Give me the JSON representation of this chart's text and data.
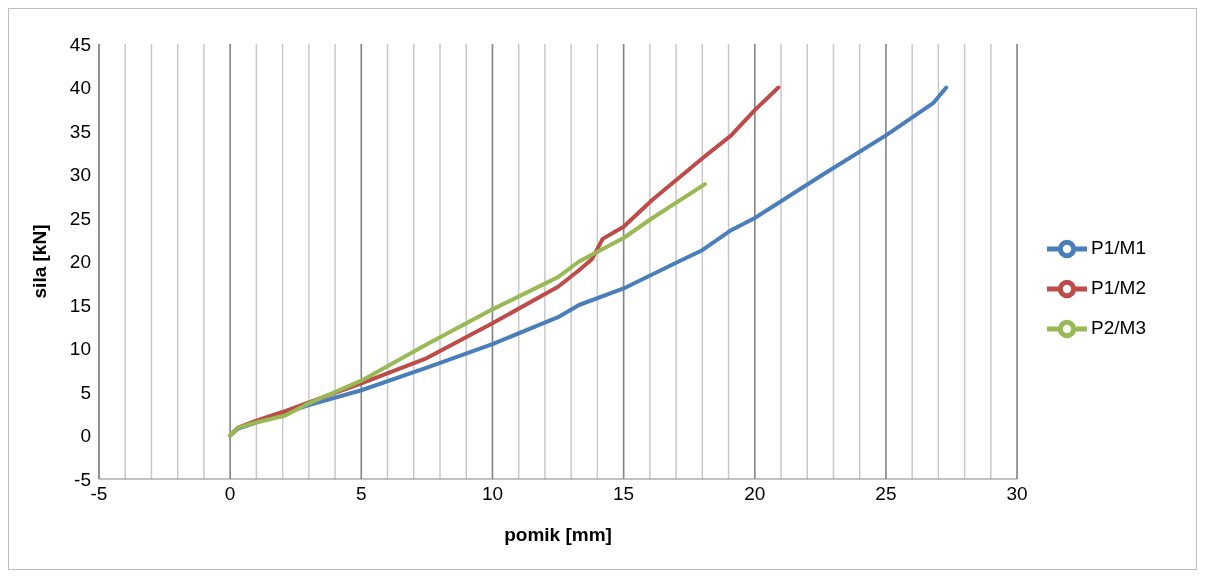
{
  "chart_data": {
    "type": "line",
    "xlabel": "pomik [mm]",
    "ylabel": "sila [kN]",
    "xlim": [
      -5,
      30
    ],
    "xticks": [
      -5,
      0,
      5,
      10,
      15,
      20,
      25,
      30
    ],
    "ylim": [
      -5,
      45
    ],
    "yticks": [
      -5,
      0,
      5,
      10,
      15,
      20,
      25,
      30,
      35,
      40,
      45
    ],
    "grid": true,
    "legend": "right",
    "marker": "none",
    "line_style": "solid",
    "series": [
      {
        "name": "P1/M1",
        "color": "#4a7ebb",
        "x": [
          0,
          0.3,
          1,
          2,
          3,
          5,
          7.5,
          10,
          12.5,
          13.3,
          15,
          17.1,
          18,
          19.1,
          20,
          22.6,
          25,
          26.8,
          27.3
        ],
        "values": [
          0,
          0.8,
          1.5,
          2.5,
          3.5,
          5.2,
          7.8,
          10.5,
          13.6,
          15,
          16.9,
          20,
          21.3,
          23.6,
          25,
          30,
          34.5,
          38.2,
          40
        ]
      },
      {
        "name": "P1/M2",
        "color": "#be4b48",
        "x": [
          0,
          0.3,
          1,
          2,
          3,
          5,
          7.5,
          10,
          12.5,
          13.3,
          13.8,
          14.2,
          15,
          16.1,
          18.1,
          19.1,
          20,
          20.9
        ],
        "values": [
          0,
          0.9,
          1.7,
          2.7,
          3.8,
          6,
          8.9,
          12.9,
          17.1,
          19,
          20.3,
          22.6,
          24,
          27.1,
          32.1,
          34.5,
          37.4,
          40
        ]
      },
      {
        "name": "P2/M3",
        "color": "#98b954",
        "x": [
          0,
          0.3,
          1,
          2.1,
          3,
          5,
          7.5,
          10,
          12.5,
          13.3,
          15,
          16.1,
          18.1
        ],
        "values": [
          0,
          0.9,
          1.5,
          2.3,
          3.7,
          6.3,
          10.5,
          14.5,
          18.2,
          20,
          22.7,
          25,
          28.9
        ]
      }
    ]
  }
}
